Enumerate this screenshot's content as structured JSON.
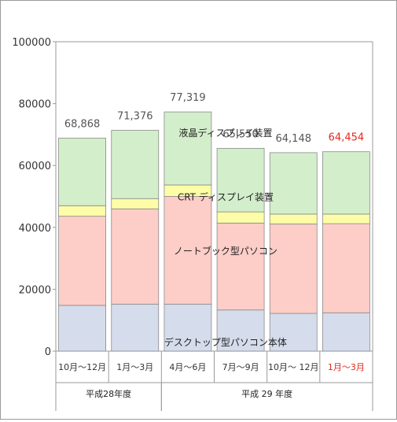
{
  "chart_data": {
    "type": "bar",
    "stacked": true,
    "categories": [
      "10月～12月",
      "1月～3月",
      "4月～6月",
      "7月～9月",
      "10月～ 12月",
      "1月～3月"
    ],
    "category_label_colors": [
      "#333333",
      "#333333",
      "#333333",
      "#333333",
      "#333333",
      "#e8281e"
    ],
    "groups": [
      {
        "label": "平成28年度",
        "categories": [
          0,
          1
        ]
      },
      {
        "label": "平成 29 年度",
        "categories": [
          2,
          3,
          4,
          5
        ]
      }
    ],
    "totals": [
      "68,868",
      "71,376",
      "77,319",
      "65,550",
      "64,148",
      "64,454"
    ],
    "total_label_colors": [
      "#555555",
      "#555555",
      "#555555",
      "#555555",
      "#555555",
      "#e8281e"
    ],
    "series": [
      {
        "name": "デスクトップ型パソコン本体",
        "color": "#d5dcec",
        "values": [
          14800,
          15200,
          15200,
          13300,
          12200,
          12400
        ]
      },
      {
        "name": "ノートブック型パソコン",
        "color": "#fdcdc8",
        "values": [
          28800,
          30800,
          34800,
          28100,
          28900,
          28800
        ]
      },
      {
        "name": "CRT ディスプレイ装置",
        "color": "#fdfda8",
        "values": [
          3400,
          3300,
          3700,
          3600,
          3200,
          3100
        ]
      },
      {
        "name": "液晶ディスプレイ装置",
        "color": "#d3eecb",
        "values": [
          21868,
          22076,
          23619,
          20550,
          19848,
          20154
        ]
      }
    ],
    "ylim": [
      0,
      100000
    ],
    "yticks": [
      0,
      20000,
      40000,
      60000,
      80000,
      100000
    ],
    "grid": false,
    "legend": "inline-labels",
    "title": "",
    "xlabel": "",
    "ylabel": ""
  }
}
